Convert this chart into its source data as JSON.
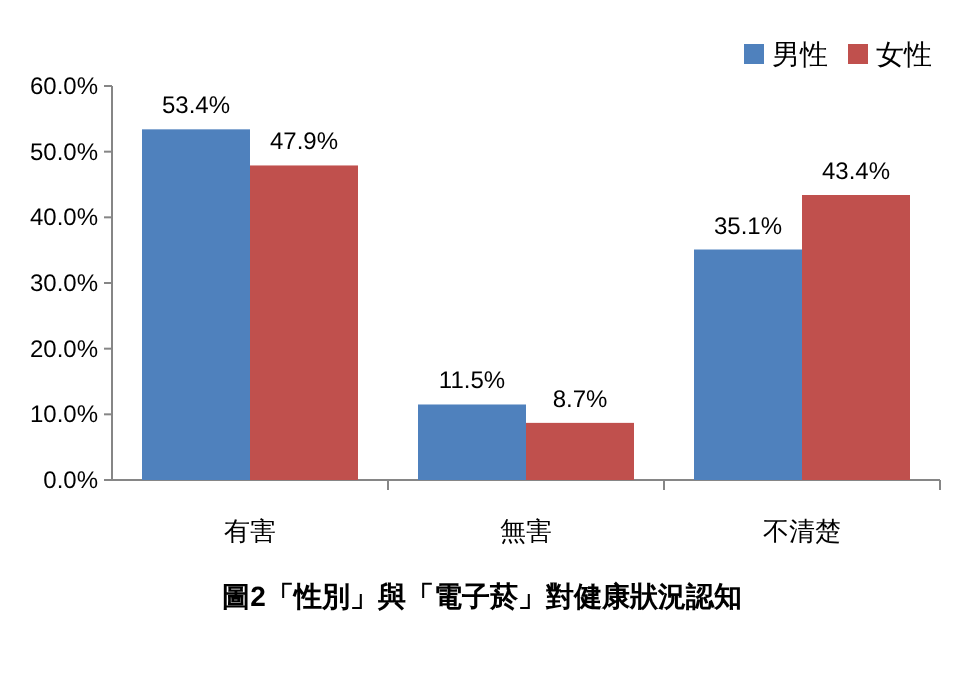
{
  "chart_data": {
    "type": "bar",
    "title": "圖2「性別」與「電子菸」對健康狀況認知",
    "categories": [
      "有害",
      "無害",
      "不清楚"
    ],
    "series": [
      {
        "name": "男性",
        "color": "#4f81bd",
        "values": [
          53.4,
          11.5,
          35.1
        ],
        "value_labels": [
          "53.4%",
          "11.5%",
          "35.1%"
        ]
      },
      {
        "name": "女性",
        "color": "#c0504d",
        "values": [
          47.9,
          8.7,
          43.4
        ],
        "value_labels": [
          "47.9%",
          "8.7%",
          "43.4%"
        ]
      }
    ],
    "ylim": [
      0,
      60
    ],
    "yticks": [
      {
        "value": 0,
        "label": "0.0%"
      },
      {
        "value": 10,
        "label": "10.0%"
      },
      {
        "value": 20,
        "label": "20.0%"
      },
      {
        "value": 30,
        "label": "30.0%"
      },
      {
        "value": 40,
        "label": "40.0%"
      },
      {
        "value": 50,
        "label": "50.0%"
      },
      {
        "value": 60,
        "label": "60.0%"
      }
    ],
    "grid": false,
    "legend": "top right"
  }
}
